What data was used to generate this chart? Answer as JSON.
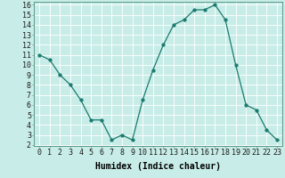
{
  "x": [
    0,
    1,
    2,
    3,
    4,
    5,
    6,
    7,
    8,
    9,
    10,
    11,
    12,
    13,
    14,
    15,
    16,
    17,
    18,
    19,
    20,
    21,
    22,
    23
  ],
  "y": [
    11,
    10.5,
    9,
    8,
    6.5,
    4.5,
    4.5,
    2.5,
    3,
    2.5,
    6.5,
    9.5,
    12,
    14,
    14.5,
    15.5,
    15.5,
    16,
    14.5,
    10,
    6,
    5.5,
    3.5,
    2.5
  ],
  "line_color": "#1a7a6e",
  "marker_color": "#1a7a6e",
  "bg_color": "#c8ede8",
  "grid_color": "#b0dcd6",
  "xlabel": "Humidex (Indice chaleur)",
  "ylim": [
    2,
    16
  ],
  "xlim": [
    -0.5,
    23.5
  ],
  "yticks": [
    2,
    3,
    4,
    5,
    6,
    7,
    8,
    9,
    10,
    11,
    12,
    13,
    14,
    15,
    16
  ],
  "xtick_labels": [
    "0",
    "1",
    "2",
    "3",
    "4",
    "5",
    "6",
    "7",
    "8",
    "9",
    "10",
    "11",
    "12",
    "13",
    "14",
    "15",
    "16",
    "17",
    "18",
    "19",
    "20",
    "21",
    "22",
    "23"
  ],
  "xlabel_fontsize": 7,
  "tick_fontsize": 6,
  "marker_size": 2.5,
  "linewidth": 0.9
}
